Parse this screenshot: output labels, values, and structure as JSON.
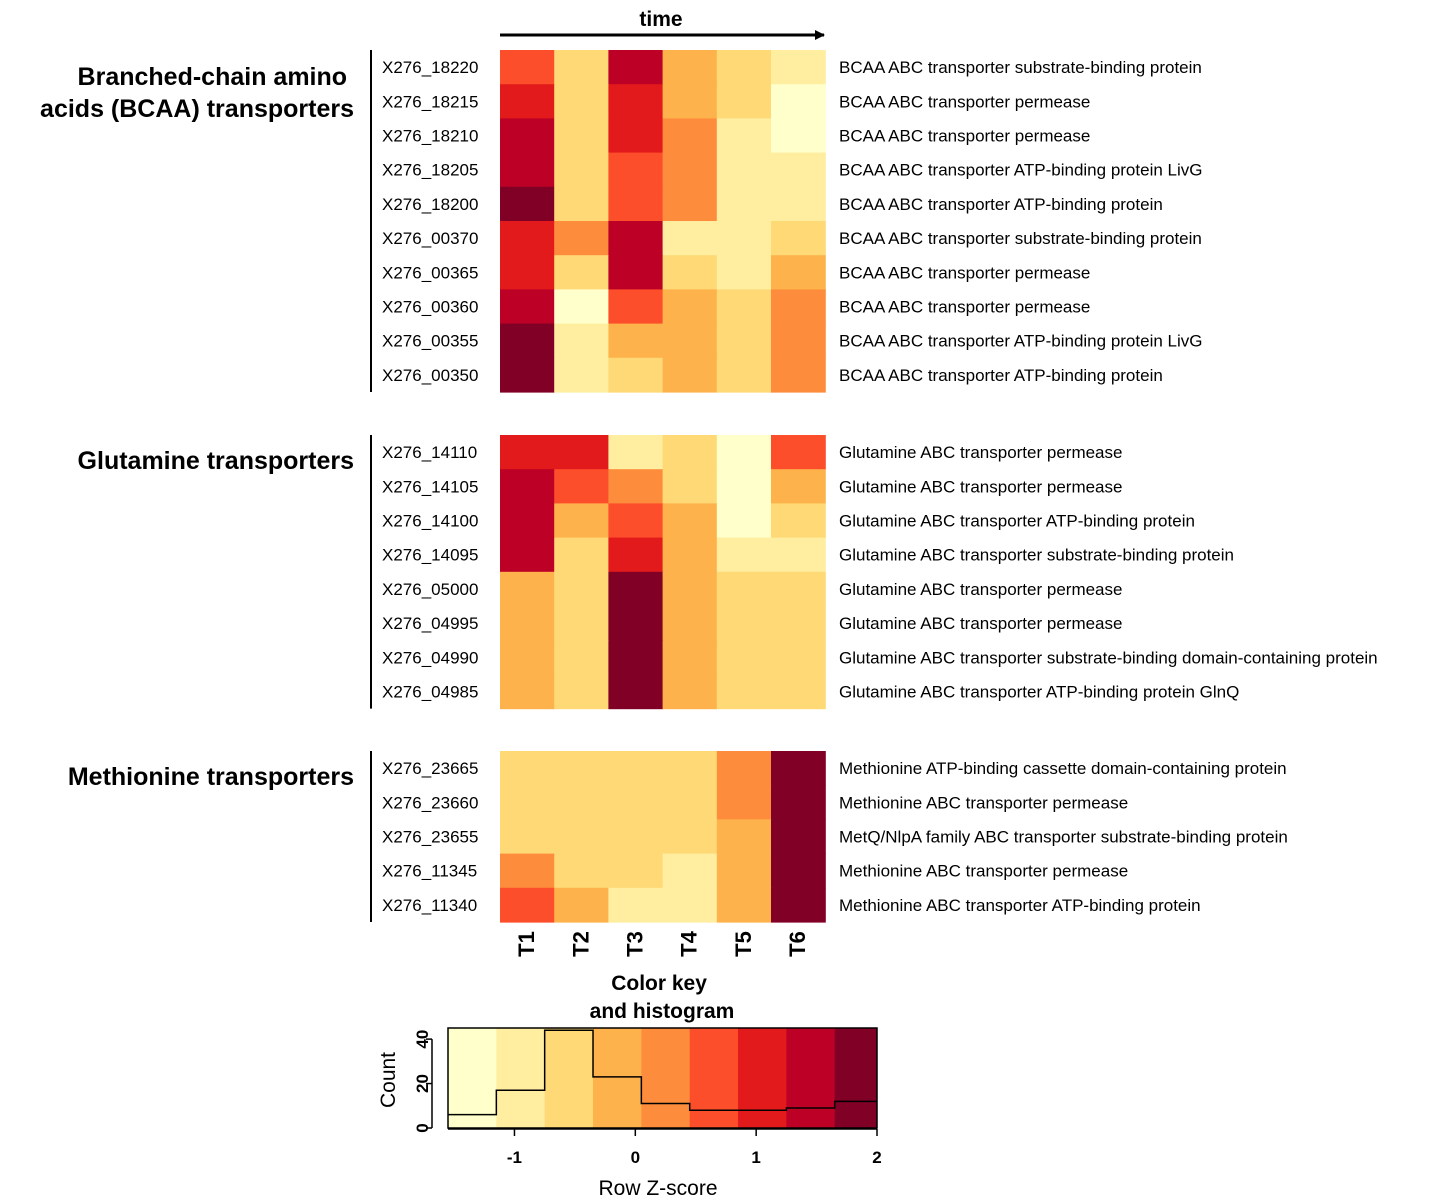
{
  "chart_data": [
    {
      "type": "heatmap",
      "title": "time",
      "columns": [
        "T1",
        "T2",
        "T3",
        "T4",
        "T5",
        "T6"
      ],
      "palette": [
        "#FFFFCC",
        "#FFEDA0",
        "#FED976",
        "#FEB24C",
        "#FD8D3C",
        "#FC4E2A",
        "#E31A1C",
        "#BD0026",
        "#800026"
      ],
      "groups": [
        {
          "name": "Branched-chain amino acids (BCAA) transporters",
          "rows": [
            {
              "id": "X276_18220",
              "label": "BCAA ABC transporter substrate-binding protein",
              "levels": [
                5,
                2,
                7,
                3,
                2,
                1
              ]
            },
            {
              "id": "X276_18215",
              "label": "BCAA ABC transporter permease",
              "levels": [
                6,
                2,
                6,
                3,
                2,
                0
              ]
            },
            {
              "id": "X276_18210",
              "label": "BCAA ABC transporter permease",
              "levels": [
                7,
                2,
                6,
                4,
                1,
                0
              ]
            },
            {
              "id": "X276_18205",
              "label": "BCAA ABC transporter ATP-binding protein LivG",
              "levels": [
                7,
                2,
                5,
                4,
                1,
                1
              ]
            },
            {
              "id": "X276_18200",
              "label": "BCAA ABC transporter ATP-binding protein",
              "levels": [
                8,
                2,
                5,
                4,
                1,
                1
              ]
            },
            {
              "id": "X276_00370",
              "label": "BCAA ABC transporter substrate-binding protein",
              "levels": [
                6,
                4,
                7,
                1,
                1,
                2
              ]
            },
            {
              "id": "X276_00365",
              "label": "BCAA ABC transporter permease",
              "levels": [
                6,
                2,
                7,
                2,
                1,
                3
              ]
            },
            {
              "id": "X276_00360",
              "label": "BCAA ABC transporter permease",
              "levels": [
                7,
                0,
                5,
                3,
                2,
                4
              ]
            },
            {
              "id": "X276_00355",
              "label": "BCAA ABC transporter ATP-binding protein LivG",
              "levels": [
                8,
                1,
                3,
                3,
                2,
                4
              ]
            },
            {
              "id": "X276_00350",
              "label": "BCAA ABC transporter ATP-binding protein",
              "levels": [
                8,
                1,
                2,
                3,
                2,
                4
              ]
            }
          ]
        },
        {
          "name": "Glutamine transporters",
          "rows": [
            {
              "id": "X276_14110",
              "label": "Glutamine ABC transporter permease",
              "levels": [
                6,
                6,
                1,
                2,
                0,
                5
              ]
            },
            {
              "id": "X276_14105",
              "label": "Glutamine ABC transporter permease",
              "levels": [
                7,
                5,
                4,
                2,
                0,
                3
              ]
            },
            {
              "id": "X276_14100",
              "label": "Glutamine ABC transporter ATP-binding protein",
              "levels": [
                7,
                3,
                5,
                3,
                0,
                2
              ]
            },
            {
              "id": "X276_14095",
              "label": "Glutamine ABC transporter substrate-binding protein",
              "levels": [
                7,
                2,
                6,
                3,
                1,
                1
              ]
            },
            {
              "id": "X276_05000",
              "label": "Glutamine ABC transporter permease",
              "levels": [
                3,
                2,
                8,
                3,
                2,
                2
              ]
            },
            {
              "id": "X276_04995",
              "label": "Glutamine ABC transporter permease",
              "levels": [
                3,
                2,
                8,
                3,
                2,
                2
              ]
            },
            {
              "id": "X276_04990",
              "label": "Glutamine ABC transporter substrate-binding domain-containing protein",
              "levels": [
                3,
                2,
                8,
                3,
                2,
                2
              ]
            },
            {
              "id": "X276_04985",
              "label": "Glutamine ABC transporter ATP-binding protein GlnQ",
              "levels": [
                3,
                2,
                8,
                3,
                2,
                2
              ]
            }
          ]
        },
        {
          "name": "Methionine transporters",
          "rows": [
            {
              "id": "X276_23665",
              "label": "Methionine ATP-binding cassette domain-containing protein",
              "levels": [
                2,
                2,
                2,
                2,
                4,
                8
              ]
            },
            {
              "id": "X276_23660",
              "label": "Methionine ABC transporter permease",
              "levels": [
                2,
                2,
                2,
                2,
                4,
                8
              ]
            },
            {
              "id": "X276_23655",
              "label": "MetQ/NlpA family ABC transporter substrate-binding protein",
              "levels": [
                2,
                2,
                2,
                2,
                3,
                8
              ]
            },
            {
              "id": "X276_11345",
              "label": "Methionine ABC transporter permease",
              "levels": [
                4,
                2,
                2,
                1,
                3,
                8
              ]
            },
            {
              "id": "X276_11340",
              "label": "Methionine ABC transporter ATP-binding protein",
              "levels": [
                5,
                3,
                1,
                1,
                3,
                8
              ]
            }
          ]
        }
      ]
    },
    {
      "type": "histogram",
      "title": "Color key and histogram",
      "xlabel": "Row Z-score",
      "ylabel": "Count",
      "xlim": [
        -1.55,
        2.0
      ],
      "ylim": [
        0,
        45
      ],
      "xticks": [
        -1,
        0,
        1,
        2
      ],
      "yticks": [
        0,
        20,
        40
      ],
      "bin_edges": [
        -1.55,
        -1.15,
        -0.75,
        -0.35,
        0.05,
        0.45,
        0.85,
        1.25,
        1.65,
        2.0
      ],
      "counts": [
        6,
        17,
        44,
        23,
        11,
        8,
        8,
        9,
        12
      ]
    }
  ]
}
